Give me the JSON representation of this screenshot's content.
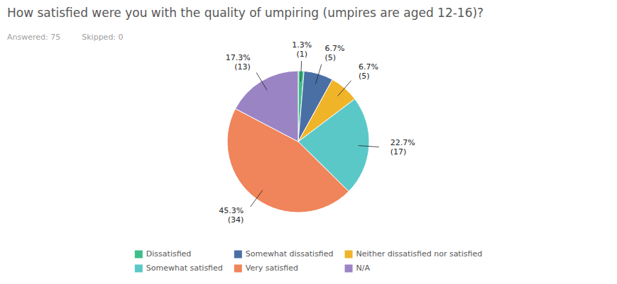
{
  "chart_data": {
    "type": "pie",
    "title": "How satisfied were you with the quality of umpiring (umpires are aged 12-16)?",
    "subtitle": [
      "Answered: 75",
      "Skipped: 0"
    ],
    "categories": [
      "Dissatisfied",
      "Somewhat dissatisfied",
      "Neither dissatisfied nor satisfied",
      "Somewhat satisfied",
      "Very satisfied",
      "N/A"
    ],
    "values": [
      1.3,
      6.7,
      6.7,
      22.7,
      45.3,
      17.3
    ],
    "value_labels": [
      "1.3%\n(1)",
      "6.7%\n(5)",
      "6.7%\n(5)",
      "22.7%\n(17)",
      "45.3%\n(34)",
      "17.3%\n(13)"
    ],
    "colors": [
      "#3dbf8a",
      "#4a6fa5",
      "#f0b429",
      "#5bc8c8",
      "#f0845a",
      "#9b84c4"
    ],
    "data_labels": true,
    "legend": "bottom"
  }
}
